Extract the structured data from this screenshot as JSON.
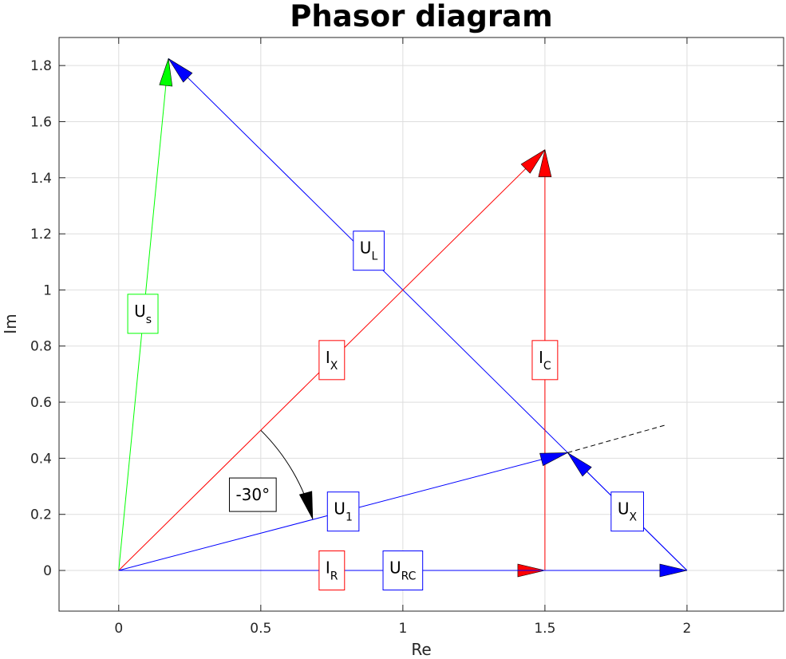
{
  "title": "Phasor diagram",
  "xlabel": "Re",
  "ylabel": "Im",
  "colors": {
    "blue": "#0000ff",
    "red": "#ff0000",
    "green": "#00ff00",
    "black": "#000000",
    "grid": "#dedede"
  },
  "chart_data": {
    "type": "line",
    "title": "Phasor diagram",
    "xlabel": "Re",
    "ylabel": "Im",
    "xlim": [
      -0.21,
      2.34
    ],
    "ylim": [
      -0.145,
      1.9
    ],
    "grid": true,
    "xticks": [
      {
        "v": 0,
        "label": "0"
      },
      {
        "v": 0.5,
        "label": "0.5"
      },
      {
        "v": 1,
        "label": "1"
      },
      {
        "v": 1.5,
        "label": "1.5"
      },
      {
        "v": 2,
        "label": "2"
      }
    ],
    "yticks": [
      {
        "v": 0,
        "label": "0"
      },
      {
        "v": 0.2,
        "label": "0.2"
      },
      {
        "v": 0.4,
        "label": "0.4"
      },
      {
        "v": 0.6,
        "label": "0.6"
      },
      {
        "v": 0.8,
        "label": "0.8"
      },
      {
        "v": 1,
        "label": "1"
      },
      {
        "v": 1.2,
        "label": "1.2"
      },
      {
        "v": 1.4,
        "label": "1.4"
      },
      {
        "v": 1.6,
        "label": "1.6"
      },
      {
        "v": 1.8,
        "label": "1.8"
      }
    ],
    "phasors": [
      {
        "id": "us",
        "from": [
          0,
          0
        ],
        "to": [
          0.175,
          1.825
        ],
        "color": "green",
        "label": "U",
        "sub": "s",
        "label_at": [
          0.085,
          0.915
        ]
      },
      {
        "id": "ul",
        "from": [
          2,
          0
        ],
        "to": [
          0.175,
          1.825
        ],
        "color": "blue",
        "label": "U",
        "sub": "L",
        "label_at": [
          0.88,
          1.14
        ]
      },
      {
        "id": "ix",
        "from": [
          0,
          0
        ],
        "to": [
          1.5,
          1.5
        ],
        "color": "red",
        "label": "I",
        "sub": "X",
        "label_at": [
          0.75,
          0.75
        ]
      },
      {
        "id": "ic",
        "from": [
          1.5,
          0
        ],
        "to": [
          1.5,
          1.5
        ],
        "color": "red",
        "label": "I",
        "sub": "C",
        "label_at": [
          1.5,
          0.75
        ]
      },
      {
        "id": "ir",
        "from": [
          0,
          0
        ],
        "to": [
          1.5,
          0
        ],
        "color": "red",
        "label": "I",
        "sub": "R",
        "label_at": [
          0.75,
          0
        ]
      },
      {
        "id": "urc",
        "from": [
          0,
          0
        ],
        "to": [
          2,
          0
        ],
        "color": "blue",
        "label": "U",
        "sub": "RC",
        "label_at": [
          1.0,
          0
        ]
      },
      {
        "id": "u1",
        "from": [
          0,
          0
        ],
        "to": [
          1.58,
          0.42
        ],
        "color": "blue",
        "label": "U",
        "sub": "1",
        "label_at": [
          0.79,
          0.21
        ]
      },
      {
        "id": "ux",
        "from": [
          2,
          0
        ],
        "to": [
          1.58,
          0.42
        ],
        "color": "blue",
        "label": "U",
        "sub": "X",
        "label_at": [
          1.79,
          0.21
        ]
      }
    ],
    "dashed_extension": {
      "from": [
        1.58,
        0.42
      ],
      "to": [
        1.93,
        0.52
      ],
      "color": "black"
    },
    "angle_annotation": {
      "label": "-30°",
      "label_at": [
        0.5,
        0.27
      ],
      "radius": 0.707,
      "from_deg": 45,
      "to_deg": 15,
      "color": "black"
    }
  }
}
